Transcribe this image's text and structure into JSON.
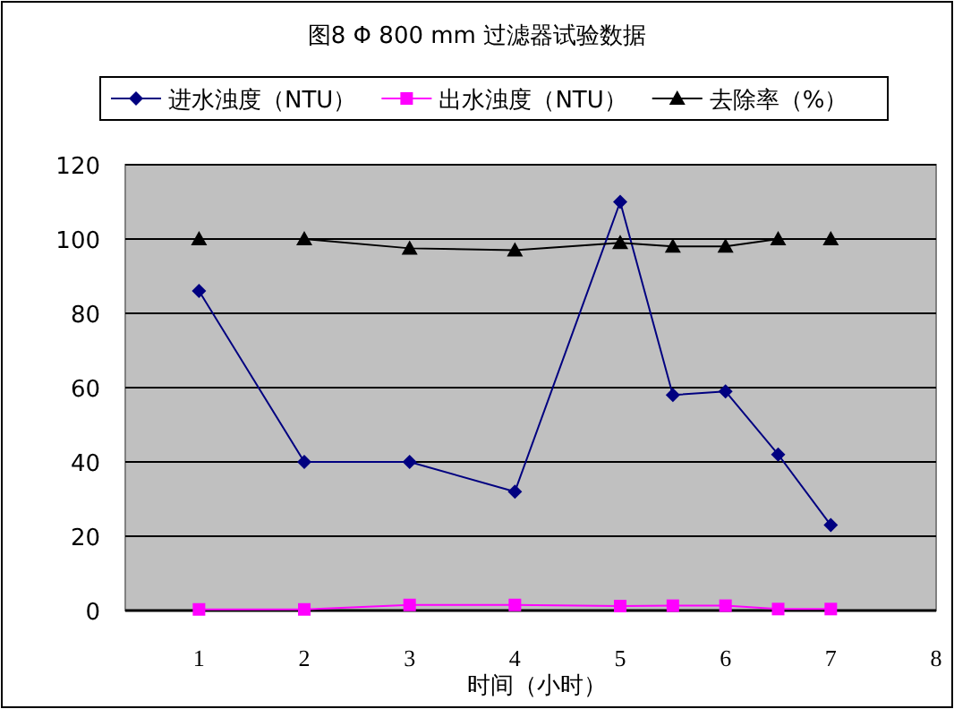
{
  "chart_data": {
    "type": "line",
    "title": "图8  Φ 800 mm 过滤器试验数据",
    "xlabel": "时间（小时）",
    "x": [
      1,
      2,
      3,
      4,
      5,
      5.5,
      6,
      6.5,
      7
    ],
    "series": [
      {
        "name": "进水浊度（NTU）",
        "color": "#000080",
        "marker": "diamond",
        "values": [
          86,
          40,
          40,
          32,
          110,
          58,
          59,
          42,
          23
        ]
      },
      {
        "name": "出水浊度（NTU）",
        "color": "#ff00ff",
        "marker": "square",
        "values": [
          0.3,
          0.3,
          1.5,
          1.5,
          1.2,
          1.3,
          1.3,
          0.4,
          0.4
        ]
      },
      {
        "name": "去除率（%）",
        "color": "#000000",
        "marker": "triangle",
        "values": [
          100,
          100,
          97.5,
          97,
          99,
          98,
          98,
          100,
          100
        ]
      }
    ],
    "xlim": [
      0.3,
      8
    ],
    "xticks": [
      1,
      2,
      3,
      4,
      5,
      6,
      7,
      8
    ],
    "ylim": [
      0,
      120
    ],
    "yticks": [
      0,
      20,
      40,
      60,
      80,
      100,
      120
    ],
    "grid": "y",
    "legend": "top"
  }
}
